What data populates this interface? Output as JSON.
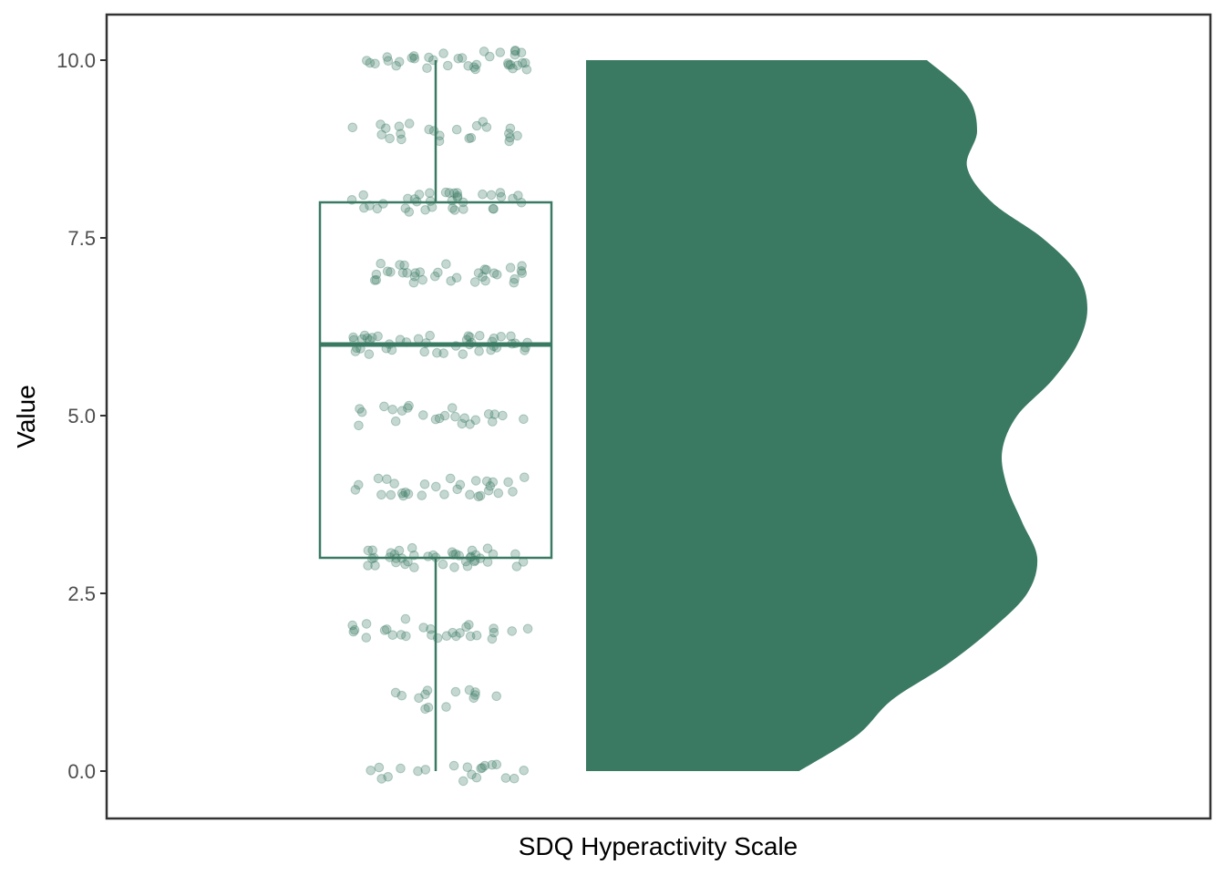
{
  "chart_data": {
    "type": "raincloud",
    "xlabel": "SDQ Hyperactivity Scale",
    "ylabel": "Value",
    "ylim": [
      -0.65,
      10.65
    ],
    "yticks": [
      0.0,
      2.5,
      5.0,
      7.5,
      10.0
    ],
    "ytick_labels": [
      "0.0",
      "2.5",
      "5.0",
      "7.5",
      "10.0"
    ],
    "grid": false,
    "legend": "none",
    "colors": {
      "fill": "#3a7a63",
      "stroke": "#3a7a63",
      "points": "#3a7a63",
      "frame": "#333333"
    },
    "box": {
      "min": 0,
      "q1": 3,
      "median": 6,
      "q3": 8,
      "max": 10
    },
    "density": {
      "y": [
        0,
        0.5,
        1,
        1.5,
        2,
        2.5,
        3,
        3.5,
        4,
        4.5,
        5,
        5.5,
        6,
        6.5,
        7,
        7.5,
        8,
        8.5,
        9,
        9.5,
        10
      ],
      "relative_width": [
        0.425,
        0.54,
        0.61,
        0.72,
        0.81,
        0.88,
        0.9,
        0.87,
        0.84,
        0.83,
        0.86,
        0.93,
        0.98,
        1.0,
        0.98,
        0.91,
        0.81,
        0.76,
        0.78,
        0.76,
        0.68
      ]
    },
    "jitter_counts": [
      {
        "value": 0,
        "count": 20
      },
      {
        "value": 1,
        "count": 14
      },
      {
        "value": 2,
        "count": 28
      },
      {
        "value": 3,
        "count": 42
      },
      {
        "value": 4,
        "count": 30
      },
      {
        "value": 5,
        "count": 24
      },
      {
        "value": 6,
        "count": 44
      },
      {
        "value": 7,
        "count": 34
      },
      {
        "value": 8,
        "count": 36
      },
      {
        "value": 9,
        "count": 24
      },
      {
        "value": 10,
        "count": 36
      }
    ]
  }
}
